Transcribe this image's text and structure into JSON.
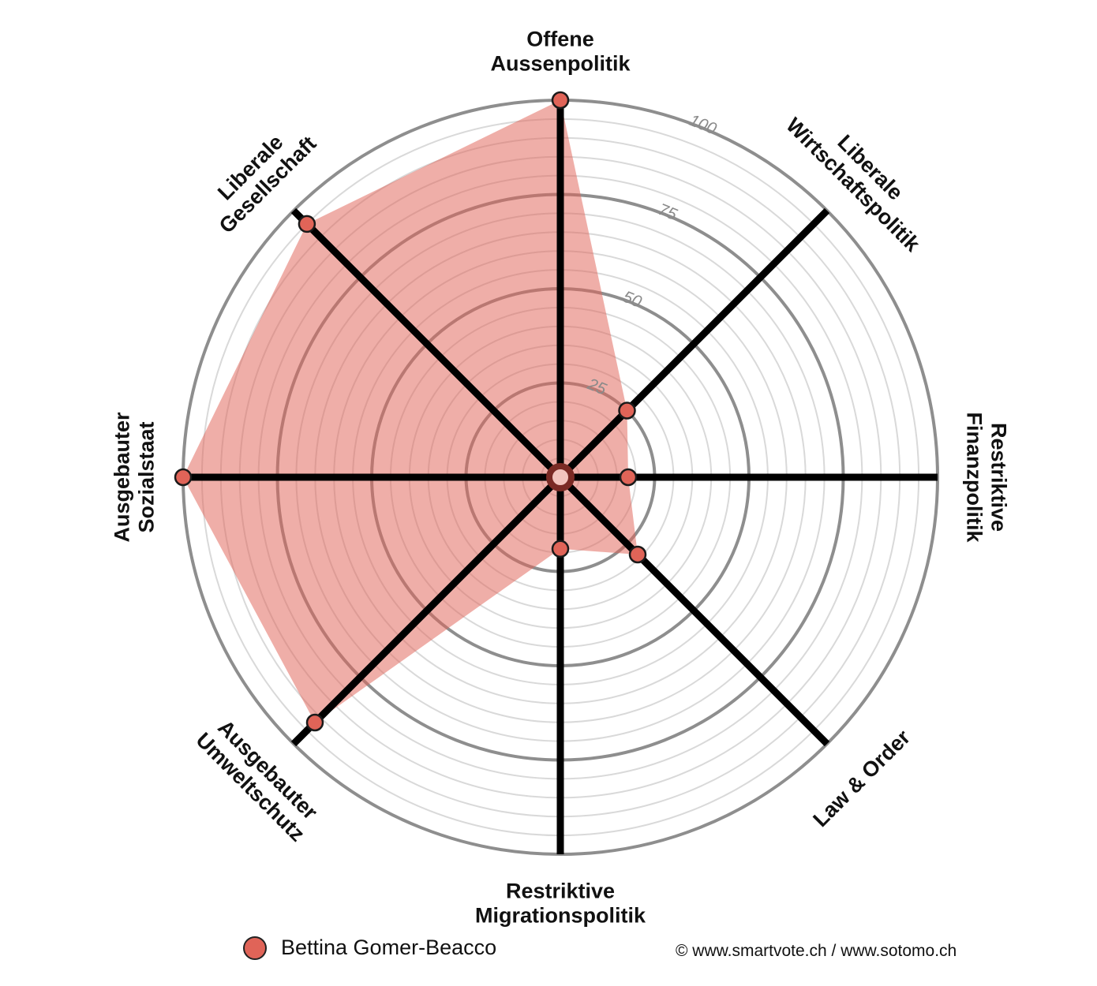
{
  "chart_data": {
    "type": "radar",
    "axes": [
      "Offene Aussenpolitik",
      "Liberale Wirtschaftspolitik",
      "Restriktive Finanzpolitik",
      "Law & Order",
      "Restriktive Migrationspolitik",
      "Ausgebauter Umweltschutz",
      "Ausgebauter Sozialstaat",
      "Liberale Gesellschaft"
    ],
    "ticks": [
      "25",
      "50",
      "75",
      "100"
    ],
    "rlim": [
      0,
      100
    ],
    "series": [
      {
        "name": "Bettina Gomer-Beacco",
        "color": "#e06458",
        "values": [
          100,
          25,
          18,
          29,
          19,
          92,
          100,
          95
        ]
      }
    ]
  },
  "legend": {
    "label": "Bettina Gomer-Beacco"
  },
  "copyright": "© www.smartvote.ch / www.sotomo.ch"
}
